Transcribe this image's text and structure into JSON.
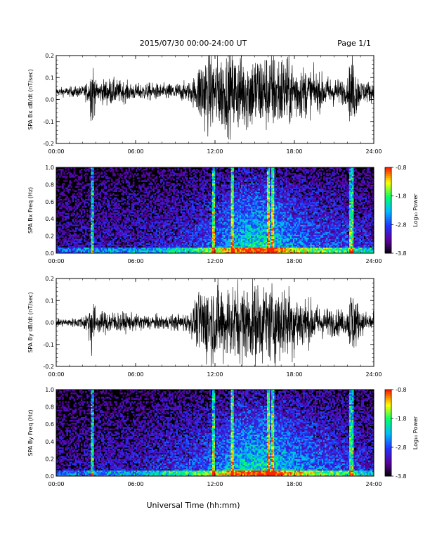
{
  "header": {
    "title": "2015/07/30  00:00-24:00 UT",
    "page": "Page 1/1"
  },
  "footer": {
    "xlabel": "Universal Time (hh:mm)"
  },
  "colors": {
    "trace": "#000000",
    "spectrogram_background": "#000000",
    "colormap": [
      "#000000",
      "#5a009a",
      "#2233ff",
      "#00bbff",
      "#00ff66",
      "#ffff00",
      "#ff2200"
    ]
  },
  "chart_data": [
    {
      "type": "line",
      "panel": "bx-waveform",
      "ylabel": "SPA Bx dB/dt (nT/sec)",
      "xlim": [
        0,
        24
      ],
      "ylim": [
        -0.2,
        0.2
      ],
      "x_tick_labels": [
        "00:00",
        "06:00",
        "12:00",
        "18:00",
        "24:00"
      ],
      "y_tick_labels": [
        "0.2",
        "0.1",
        "0.0",
        "-0.1",
        "-0.2"
      ],
      "x_tick_values": [
        0,
        6,
        12,
        18,
        24
      ],
      "y_tick_values": [
        0.2,
        0.1,
        0.0,
        -0.1,
        -0.2
      ],
      "series_x_hours": [
        0,
        1,
        2,
        2.5,
        2.7,
        3,
        4,
        5,
        6,
        7,
        8,
        9,
        10,
        10.5,
        11,
        12,
        13,
        14,
        15,
        16,
        17,
        18,
        19,
        20,
        21,
        22,
        22.3,
        23,
        24
      ],
      "series_amplitude": [
        0.02,
        0.025,
        0.03,
        0.06,
        0.2,
        0.05,
        0.07,
        0.055,
        0.04,
        0.045,
        0.04,
        0.045,
        0.05,
        0.08,
        0.2,
        0.2,
        0.2,
        0.2,
        0.2,
        0.2,
        0.2,
        0.16,
        0.12,
        0.09,
        0.07,
        0.06,
        0.2,
        0.06,
        0.05
      ],
      "series_offset": 0.035,
      "grid": false
    },
    {
      "type": "heatmap",
      "panel": "bx-spectrogram",
      "ylabel": "SPA Bx Freq (Hz)",
      "xlim": [
        0,
        24
      ],
      "ylim": [
        0,
        1.0
      ],
      "x_tick_labels": [
        "00:00",
        "06:00",
        "12:00",
        "18:00",
        "24:00"
      ],
      "y_tick_labels": [
        "1.0",
        "0.8",
        "0.6",
        "0.4",
        "0.2",
        "0.0"
      ],
      "x_tick_values": [
        0,
        6,
        12,
        18,
        24
      ],
      "y_tick_values": [
        1.0,
        0.8,
        0.6,
        0.4,
        0.2,
        0.0
      ],
      "colorbar": {
        "label": "Log₁₀ Power",
        "range": [
          -3.8,
          -0.8
        ],
        "tick_labels": [
          "-0.8",
          "-1.8",
          "-2.8",
          "-3.8"
        ],
        "tick_values": [
          -0.8,
          -1.8,
          -2.8,
          -3.8
        ]
      },
      "activity_x_hours": [
        0,
        2,
        4,
        6,
        8,
        10,
        12,
        14,
        16,
        18,
        20,
        22,
        24
      ],
      "activity_level": [
        0.2,
        0.25,
        0.3,
        0.3,
        0.35,
        0.4,
        0.55,
        0.8,
        0.85,
        0.6,
        0.5,
        0.45,
        0.35
      ],
      "bright_line_hours": [
        2.75,
        11.9,
        13.3,
        16.0,
        16.4,
        22.3
      ],
      "grid": false
    },
    {
      "type": "line",
      "panel": "by-waveform",
      "ylabel": "SPA By dB/dt (nT/sec)",
      "xlim": [
        0,
        24
      ],
      "ylim": [
        -0.2,
        0.2
      ],
      "x_tick_labels": [
        "00:00",
        "06:00",
        "12:00",
        "18:00",
        "24:00"
      ],
      "y_tick_labels": [
        "0.2",
        "0.1",
        "0.0",
        "-0.1",
        "-0.2"
      ],
      "x_tick_values": [
        0,
        6,
        12,
        18,
        24
      ],
      "y_tick_values": [
        0.2,
        0.1,
        0.0,
        -0.1,
        -0.2
      ],
      "series_x_hours": [
        0,
        1,
        2,
        2.5,
        2.7,
        3,
        4,
        5,
        6,
        7,
        8,
        9,
        10,
        10.5,
        11,
        12,
        13,
        14,
        15,
        16,
        17,
        18,
        19,
        20,
        21,
        22,
        22.3,
        23,
        24
      ],
      "series_amplitude": [
        0.02,
        0.02,
        0.03,
        0.08,
        0.2,
        0.05,
        0.06,
        0.05,
        0.04,
        0.04,
        0.035,
        0.04,
        0.05,
        0.1,
        0.2,
        0.2,
        0.2,
        0.2,
        0.2,
        0.2,
        0.2,
        0.17,
        0.12,
        0.08,
        0.07,
        0.06,
        0.2,
        0.06,
        0.05
      ],
      "series_offset": 0.0,
      "grid": false
    },
    {
      "type": "heatmap",
      "panel": "by-spectrogram",
      "ylabel": "SPA By Freq (Hz)",
      "xlim": [
        0,
        24
      ],
      "ylim": [
        0,
        1.0
      ],
      "x_tick_labels": [
        "00:00",
        "06:00",
        "12:00",
        "18:00",
        "24:00"
      ],
      "y_tick_labels": [
        "1.0",
        "0.8",
        "0.6",
        "0.4",
        "0.2",
        "0.0"
      ],
      "x_tick_values": [
        0,
        6,
        12,
        18,
        24
      ],
      "y_tick_values": [
        1.0,
        0.8,
        0.6,
        0.4,
        0.2,
        0.0
      ],
      "colorbar": {
        "label": "Log₁₀ Power",
        "range": [
          -3.8,
          -0.8
        ],
        "tick_labels": [
          "-0.8",
          "-1.8",
          "-2.8",
          "-3.8"
        ],
        "tick_values": [
          -0.8,
          -1.8,
          -2.8,
          -3.8
        ]
      },
      "activity_x_hours": [
        0,
        2,
        4,
        6,
        8,
        10,
        12,
        14,
        16,
        18,
        20,
        22,
        24
      ],
      "activity_level": [
        0.2,
        0.25,
        0.3,
        0.3,
        0.4,
        0.45,
        0.55,
        0.8,
        0.85,
        0.65,
        0.55,
        0.45,
        0.35
      ],
      "bright_line_hours": [
        2.75,
        11.9,
        13.3,
        16.0,
        16.4,
        22.3
      ],
      "grid": false
    }
  ]
}
